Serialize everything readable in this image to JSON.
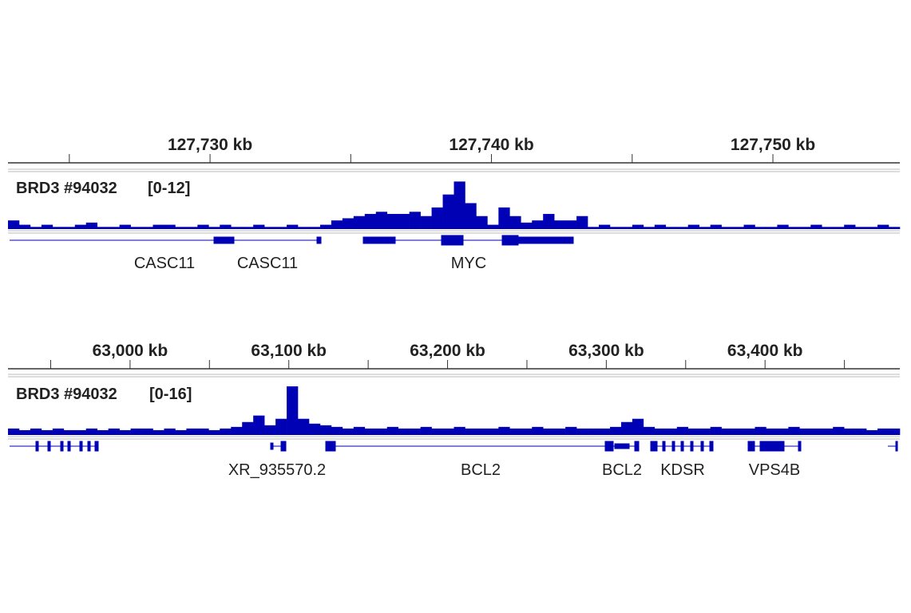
{
  "chart_data": [
    {
      "type": "coverage",
      "track_name": "BRD3 #94032",
      "range_label": "[0-12]",
      "xlim": [
        127722.82,
        127754.51
      ],
      "xticks": [
        {
          "value": 127730,
          "label": "127,730 kb"
        },
        {
          "value": 127740,
          "label": "127,740 kb"
        },
        {
          "value": 127750,
          "label": "127,750 kb"
        }
      ],
      "minor_xticks": [
        127725,
        127735,
        127745
      ],
      "ylim": [
        0,
        12
      ],
      "color": "#0000b4",
      "values": [
        2,
        1,
        0.5,
        1,
        0.5,
        0.5,
        1,
        1.5,
        0.5,
        0.5,
        1,
        0.5,
        0.5,
        1,
        1,
        0.5,
        0.5,
        1,
        0.5,
        1,
        0.5,
        0.5,
        1,
        0.5,
        0.5,
        1,
        0.5,
        0.5,
        1,
        2,
        2.5,
        3,
        3.5,
        4,
        3.5,
        3.5,
        4,
        3,
        5,
        8,
        11,
        6,
        3,
        1,
        5,
        3,
        1.5,
        2,
        3.5,
        2,
        2,
        3,
        0.5,
        1,
        0.5,
        0.5,
        1,
        0.5,
        1,
        0.5,
        0.5,
        1,
        0.5,
        1,
        0.5,
        0.5,
        1,
        0.5,
        0.5,
        1,
        0.5,
        0.5,
        1,
        0.5,
        0.5,
        1,
        0.5,
        0.5,
        1,
        0.5
      ],
      "genes": [
        "CASC11",
        "CASC11",
        "MYC"
      ]
    },
    {
      "type": "coverage",
      "track_name": "BRD3 #94032",
      "range_label": "[0-16]",
      "xlim": [
        62923.1,
        63484.9
      ],
      "xticks": [
        {
          "value": 63000,
          "label": "63,000 kb"
        },
        {
          "value": 63100,
          "label": "63,100 kb"
        },
        {
          "value": 63200,
          "label": "63,200 kb"
        },
        {
          "value": 63300,
          "label": "63,300 kb"
        },
        {
          "value": 63400,
          "label": "63,400 kb"
        }
      ],
      "minor_xticks": [
        62950,
        63050,
        63150,
        63250,
        63350,
        63450
      ],
      "ylim": [
        0,
        16
      ],
      "color": "#0000b4",
      "values": [
        2,
        1.5,
        2,
        1.5,
        2,
        1.5,
        1.5,
        2,
        1.5,
        2,
        1.5,
        2,
        2,
        1.5,
        2,
        1.5,
        2,
        2,
        1.5,
        2,
        2.5,
        4,
        6,
        3,
        5,
        15,
        5,
        3.5,
        3,
        2.5,
        2,
        2.5,
        2,
        2,
        2.5,
        2,
        2,
        2.5,
        2,
        2,
        2.5,
        2,
        2,
        2,
        2.5,
        2,
        2,
        2.5,
        2,
        2,
        2.5,
        2,
        2,
        2,
        2.5,
        4,
        5,
        2.5,
        2,
        2,
        2.5,
        2,
        2,
        2.5,
        2,
        2,
        2,
        2.5,
        2,
        2,
        2.5,
        2,
        2,
        2,
        2.5,
        2,
        2,
        1.5,
        2,
        2
      ],
      "genes": [
        "XR_935570.2",
        "BCL2",
        "BCL2",
        "KDSR",
        "VPS4B"
      ]
    }
  ]
}
